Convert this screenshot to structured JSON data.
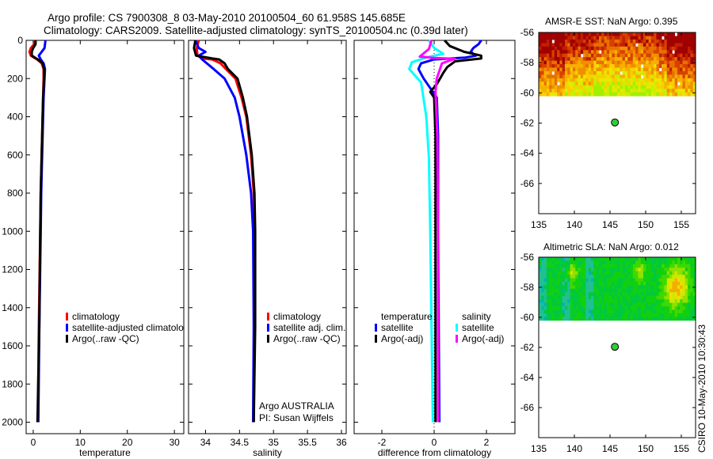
{
  "header": {
    "title_line1": "Argo profile: CS 7900308_8 03-May-2010 20100504_60 61.958S 145.685E",
    "title_line2": "Climatology: CARS2009. Satellite-adjusted climatology: synTS_20100504.nc (0.39d later)"
  },
  "credits": {
    "argo_program": "Argo AUSTRALIA",
    "pi": "PI: Susan Wijffels",
    "stamp": "CSIRO 10-May-2010 10:30:43"
  },
  "colors": {
    "red": "#ff0000",
    "blue": "#0000ff",
    "black": "#000000",
    "cyan": "#00ffff",
    "magenta": "#ff00ff",
    "argo_dot": "#33cc33"
  },
  "chart_data": [
    {
      "type": "line",
      "xlabel": "temperature",
      "ylabel": "",
      "xlim": [
        -1.5,
        32
      ],
      "ylim": [
        2060,
        0
      ],
      "xticks": [
        0,
        10,
        20,
        30
      ],
      "yticks": [
        0,
        200,
        400,
        600,
        800,
        1000,
        1200,
        1400,
        1600,
        1800,
        2000
      ],
      "legend": {
        "placement": "lower-middle",
        "entries": [
          "climatology",
          "satellite-adjusted climatolo",
          "Argo(..raw -QC)"
        ]
      },
      "series": [
        {
          "name": "climatology",
          "color": "#ff0000",
          "depth": [
            0,
            20,
            40,
            60,
            80,
            100,
            120,
            150,
            200,
            300,
            500,
            800,
            1000,
            1500,
            2000
          ],
          "values": [
            0.3,
            0.2,
            -0.5,
            -0.8,
            -0.5,
            0.8,
            1.8,
            2.2,
            2.2,
            2.1,
            1.9,
            1.6,
            1.5,
            1.2,
            1.0
          ]
        },
        {
          "name": "satellite-adjusted climatology",
          "color": "#0000ff",
          "depth": [
            0,
            20,
            40,
            60,
            80,
            100,
            120,
            150,
            200,
            300,
            500,
            800,
            1000,
            1500,
            2000
          ],
          "values": [
            2.6,
            2.5,
            2.4,
            1.8,
            1.2,
            1.6,
            2.2,
            2.5,
            2.4,
            2.2,
            2.0,
            1.7,
            1.6,
            1.3,
            1.1
          ]
        },
        {
          "name": "Argo(..raw -QC)",
          "color": "#000000",
          "depth": [
            0,
            20,
            40,
            60,
            80,
            100,
            120,
            150,
            200,
            300,
            500,
            800,
            1000,
            1500,
            2000
          ],
          "values": [
            0.5,
            0.5,
            0.0,
            -0.3,
            -0.3,
            1.0,
            2.0,
            2.3,
            2.3,
            2.1,
            1.9,
            1.6,
            1.5,
            1.3,
            0.9
          ]
        }
      ]
    },
    {
      "type": "line",
      "xlabel": "salinity",
      "xlim": [
        33.75,
        36.07
      ],
      "ylim": [
        2060,
        0
      ],
      "xticks": [
        34,
        34.5,
        35,
        35.5,
        36
      ],
      "xticklabels": [
        "34",
        "34.5",
        "35",
        "35.5",
        "36"
      ],
      "legend": {
        "placement": "lower-middle",
        "entries": [
          "climatology",
          "satellite adj. clim.",
          "Argo(..raw -QC)"
        ]
      },
      "series": [
        {
          "name": "climatology",
          "color": "#ff0000",
          "depth": [
            0,
            40,
            80,
            95,
            100,
            120,
            150,
            200,
            300,
            400,
            600,
            800,
            1000,
            1500,
            2000
          ],
          "values": [
            33.9,
            33.87,
            33.88,
            33.95,
            34.1,
            34.22,
            34.3,
            34.44,
            34.53,
            34.6,
            34.67,
            34.71,
            34.72,
            34.72,
            34.71
          ]
        },
        {
          "name": "satellite adj. clim.",
          "color": "#0000ff",
          "depth": [
            0,
            40,
            60,
            80,
            100,
            150,
            200,
            300,
            400,
            600,
            800,
            1000,
            1500,
            2000
          ],
          "values": [
            33.85,
            33.9,
            34.0,
            33.9,
            33.95,
            34.12,
            34.28,
            34.43,
            34.5,
            34.6,
            34.67,
            34.7,
            34.71,
            34.7
          ]
        },
        {
          "name": "Argo(..raw -QC)",
          "color": "#000000",
          "depth": [
            0,
            40,
            80,
            95,
            100,
            120,
            150,
            200,
            300,
            400,
            600,
            800,
            1000,
            1500,
            2000
          ],
          "values": [
            33.85,
            33.83,
            33.86,
            34.1,
            34.2,
            34.28,
            34.33,
            34.47,
            34.55,
            34.61,
            34.68,
            34.72,
            34.73,
            34.73,
            34.71
          ]
        }
      ]
    },
    {
      "type": "line",
      "xlabel": "difference from climatology",
      "xlim": [
        -3.06,
        3.09
      ],
      "ylim": [
        2060,
        0
      ],
      "xticks": [
        -2,
        0,
        2
      ],
      "legend": {
        "placement": "lower-middle",
        "groups": [
          "temperature",
          "salinity"
        ],
        "entries": [
          "satellite",
          "Argo(-adj)",
          "satellite",
          "Argo(-adj)"
        ]
      },
      "series": [
        {
          "name": "temperature satellite",
          "color": "#0000ff",
          "depth": [
            0,
            20,
            40,
            60,
            80,
            90,
            100,
            120,
            150,
            200,
            250,
            300,
            500,
            1000,
            2000
          ],
          "values": [
            1.8,
            1.7,
            1.5,
            1.4,
            1.6,
            1.2,
            0.0,
            -0.5,
            -0.6,
            -0.4,
            -0.15,
            0.1,
            0.15,
            0.15,
            0.2
          ]
        },
        {
          "name": "temperature Argo(-adj)",
          "color": "#000000",
          "depth": [
            0,
            30,
            60,
            80,
            95,
            110,
            140,
            170,
            230,
            270,
            300,
            500,
            1000,
            2000
          ],
          "values": [
            0.4,
            0.6,
            1.15,
            1.8,
            1.8,
            0.8,
            0.5,
            0.35,
            0.1,
            -0.15,
            0.0,
            0.05,
            0.05,
            0.05
          ]
        },
        {
          "name": "salinity satellite",
          "color": "#00ffff",
          "depth": [
            0,
            40,
            70,
            90,
            115,
            150,
            220,
            400,
            615,
            1000,
            1500,
            2000
          ],
          "values": [
            -0.2,
            0.0,
            0.35,
            -0.3,
            -0.85,
            -0.95,
            -0.5,
            -0.3,
            -0.2,
            -0.15,
            -0.1,
            -0.05
          ]
        },
        {
          "name": "salinity Argo(-adj)",
          "color": "#ff00ff",
          "depth": [
            0,
            45,
            85,
            92,
            96,
            120,
            200,
            270,
            500,
            1000,
            2000
          ],
          "values": [
            -0.1,
            -0.2,
            -0.55,
            0.0,
            0.8,
            0.3,
            0.1,
            0.05,
            0.12,
            0.15,
            0.15
          ]
        }
      ]
    },
    {
      "type": "heatmap",
      "title": "AMSR-E SST: NaN Argo: 0.395",
      "xlim": [
        135,
        157
      ],
      "ylim": [
        -68,
        -56
      ],
      "xticks": [
        135,
        140,
        145,
        150,
        155
      ],
      "yticks": [
        -56,
        -58,
        -60,
        -62,
        -64,
        -66
      ],
      "data_extent_lat": [
        -60.2,
        -56
      ],
      "argo_position": {
        "lon": 145.685,
        "lat": -61.958
      }
    },
    {
      "type": "heatmap",
      "title": "Altimetric SLA: NaN Argo: 0.012",
      "xlim": [
        135,
        157
      ],
      "ylim": [
        -68,
        -56
      ],
      "xticks": [
        135,
        140,
        145,
        150,
        155
      ],
      "yticks": [
        -56,
        -58,
        -60,
        -62,
        -64,
        -66
      ],
      "data_extent_lat": [
        -60.2,
        -56
      ],
      "argo_position": {
        "lon": 145.685,
        "lat": -61.958
      }
    }
  ]
}
